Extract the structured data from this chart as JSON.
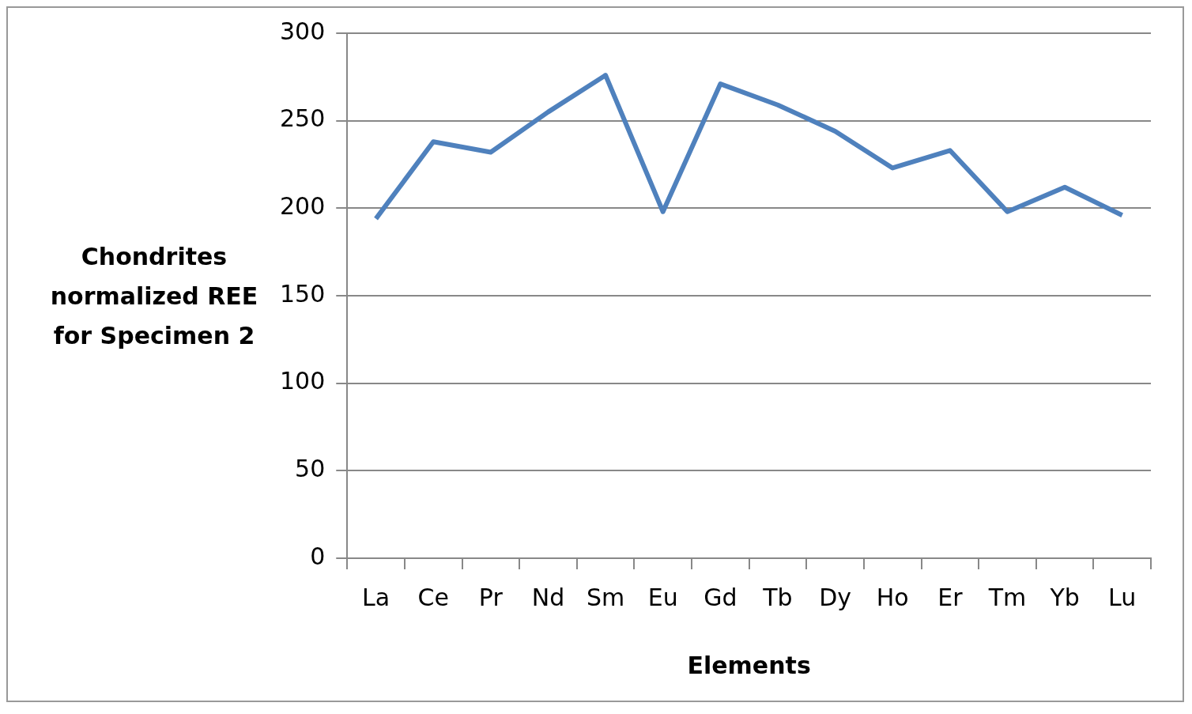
{
  "chart_data": {
    "type": "line",
    "xlabel": "Elements",
    "ylabel": "Chondrites normalized REE for Specimen 2",
    "categories": [
      "La",
      "Ce",
      "Pr",
      "Nd",
      "Sm",
      "Eu",
      "Gd",
      "Tb",
      "Dy",
      "Ho",
      "Er",
      "Tm",
      "Yb",
      "Lu"
    ],
    "series": [
      {
        "color": "#4f81bd",
        "values": [
          194,
          238,
          232,
          255,
          276,
          198,
          271,
          259,
          244,
          223,
          233,
          198,
          212,
          196
        ]
      }
    ],
    "ylim": [
      0,
      300
    ],
    "yticks": [
      0,
      50,
      100,
      150,
      200,
      250,
      300
    ],
    "grid": "y",
    "legend": false,
    "marker": "none",
    "line_style": "solid"
  }
}
